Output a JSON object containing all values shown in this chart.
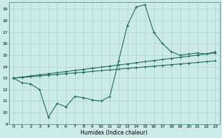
{
  "xlabel": "Humidex (Indice chaleur)",
  "bg_color": "#cdeaea",
  "grid_color": "#b0d4d4",
  "line_color": "#1a6b5a",
  "xlim": [
    -0.5,
    23.5
  ],
  "ylim": [
    9,
    19.6
  ],
  "yticks": [
    9,
    10,
    11,
    12,
    13,
    14,
    15,
    16,
    17,
    18,
    19
  ],
  "xticks": [
    0,
    1,
    2,
    3,
    4,
    5,
    6,
    7,
    8,
    9,
    10,
    11,
    12,
    13,
    14,
    15,
    16,
    17,
    18,
    19,
    20,
    21,
    22,
    23
  ],
  "curve1_x": [
    0,
    1,
    2,
    3,
    4,
    5,
    6,
    7,
    8,
    9,
    10,
    11,
    12,
    13,
    14,
    15,
    16,
    17,
    18,
    19,
    20,
    21,
    22,
    23
  ],
  "curve1_y": [
    13.0,
    12.6,
    12.5,
    12.0,
    9.6,
    10.8,
    10.5,
    11.4,
    11.3,
    11.1,
    11.0,
    11.4,
    14.5,
    17.6,
    19.2,
    19.4,
    17.0,
    16.0,
    15.3,
    15.0,
    15.1,
    15.2,
    15.1,
    15.3
  ],
  "curve2_x": [
    0,
    1,
    2,
    3,
    4,
    5,
    6,
    7,
    8,
    9,
    10,
    11,
    12,
    13,
    14,
    15,
    16,
    17,
    18,
    19,
    20,
    21,
    22,
    23
  ],
  "curve2_y": [
    13.0,
    13.096,
    13.191,
    13.287,
    13.383,
    13.478,
    13.574,
    13.67,
    13.765,
    13.861,
    13.957,
    14.052,
    14.148,
    14.243,
    14.339,
    14.435,
    14.53,
    14.626,
    14.722,
    14.817,
    14.913,
    15.009,
    15.104,
    15.2
  ],
  "curve3_x": [
    0,
    1,
    2,
    3,
    4,
    5,
    6,
    7,
    8,
    9,
    10,
    11,
    12,
    13,
    14,
    15,
    16,
    17,
    18,
    19,
    20,
    21,
    22,
    23
  ],
  "curve3_y": [
    13.0,
    13.065,
    13.13,
    13.196,
    13.261,
    13.326,
    13.391,
    13.457,
    13.522,
    13.587,
    13.652,
    13.717,
    13.783,
    13.848,
    13.913,
    13.978,
    14.043,
    14.109,
    14.174,
    14.239,
    14.304,
    14.37,
    14.435,
    14.5
  ]
}
